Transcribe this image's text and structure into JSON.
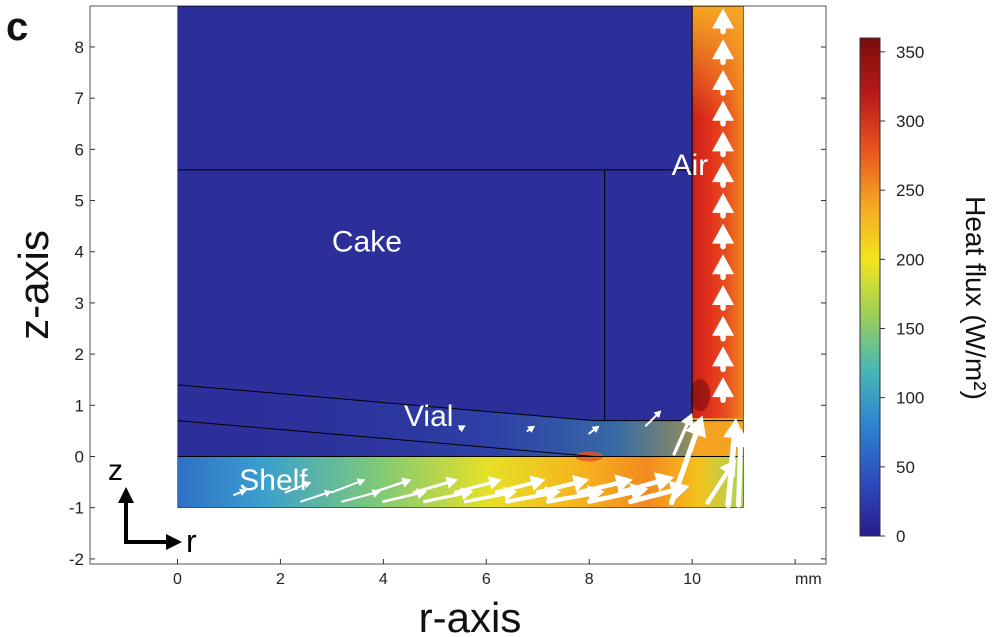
{
  "chart_data": {
    "type": "heatmap",
    "panel_label": "c",
    "xlabel": "r-axis",
    "ylabel": "z-axis",
    "x_unit": "mm",
    "xlim": [
      -1.7,
      12.6
    ],
    "ylim": [
      -2.1,
      8.8
    ],
    "x_ticks": [
      0,
      2,
      4,
      6,
      8,
      10
    ],
    "y_ticks": [
      -2,
      -1,
      0,
      1,
      2,
      3,
      4,
      5,
      6,
      7,
      8
    ],
    "grid": false,
    "colorbar": {
      "label": "Heat flux (W/m²)",
      "min": 0,
      "max": 360,
      "ticks": [
        0,
        50,
        100,
        150,
        200,
        250,
        300,
        350
      ],
      "colormap": "jet",
      "colors": [
        "#2b1b8c",
        "#2c4dbd",
        "#2f83cf",
        "#47b7b5",
        "#9ccf57",
        "#f4e41f",
        "#f5a623",
        "#e8521f",
        "#b51a1a",
        "#7a0c0c"
      ]
    },
    "regions": [
      {
        "name": "Cake",
        "label": "Cake",
        "value": 10,
        "label_at": [
          3.0,
          4.0
        ]
      },
      {
        "name": "Air",
        "label": "Air",
        "value": 8,
        "label_at": [
          9.6,
          5.5
        ]
      },
      {
        "name": "Vial",
        "label": "Vial",
        "value": 15,
        "label_at": [
          4.4,
          0.6
        ]
      },
      {
        "name": "Shelf",
        "label": "Shelf",
        "value_range": [
          60,
          330
        ],
        "label_at": [
          1.2,
          -0.65
        ]
      }
    ],
    "boundaries": {
      "domain": {
        "r": [
          0,
          11
        ],
        "z": [
          -1,
          8.8
        ]
      },
      "shelf_top_z": 0,
      "cake_top_z": 5.6,
      "cake_right_r": 8.3,
      "vial_bottom_inner": {
        "r": [
          0,
          8.1
        ],
        "z": [
          1.4,
          0.7
        ]
      },
      "vial_bottom_outer": {
        "r": [
          0,
          8.1
        ],
        "z": [
          0.7,
          0.0
        ]
      },
      "vial_wall_r": [
        10.0,
        11.0
      ],
      "vial_wall_bottom_z": 0.75
    },
    "flux_arrows": [
      {
        "r": 10.6,
        "z": 8.3,
        "dr": 0,
        "dz": 0.45,
        "mag": 330
      },
      {
        "r": 10.6,
        "z": 7.7,
        "dr": 0,
        "dz": 0.45,
        "mag": 330
      },
      {
        "r": 10.6,
        "z": 7.1,
        "dr": 0,
        "dz": 0.45,
        "mag": 330
      },
      {
        "r": 10.6,
        "z": 6.5,
        "dr": 0,
        "dz": 0.45,
        "mag": 330
      },
      {
        "r": 10.6,
        "z": 5.9,
        "dr": 0,
        "dz": 0.45,
        "mag": 330
      },
      {
        "r": 10.6,
        "z": 5.3,
        "dr": 0,
        "dz": 0.45,
        "mag": 330
      },
      {
        "r": 10.6,
        "z": 4.7,
        "dr": 0,
        "dz": 0.45,
        "mag": 330
      },
      {
        "r": 10.6,
        "z": 4.1,
        "dr": 0,
        "dz": 0.45,
        "mag": 330
      },
      {
        "r": 10.6,
        "z": 3.5,
        "dr": 0,
        "dz": 0.45,
        "mag": 330
      },
      {
        "r": 10.6,
        "z": 2.9,
        "dr": 0,
        "dz": 0.45,
        "mag": 330
      },
      {
        "r": 10.6,
        "z": 2.3,
        "dr": 0,
        "dz": 0.45,
        "mag": 330
      },
      {
        "r": 10.6,
        "z": 1.7,
        "dr": 0,
        "dz": 0.45,
        "mag": 330
      },
      {
        "r": 10.6,
        "z": 1.1,
        "dr": 0,
        "dz": 0.45,
        "mag": 330
      },
      {
        "r": 10.7,
        "z": -0.95,
        "dr": 0.15,
        "dz": 1.7,
        "mag": 340
      },
      {
        "r": 10.9,
        "z": -0.95,
        "dr": 0.05,
        "dz": 1.5,
        "mag": 300
      },
      {
        "r": 9.6,
        "z": -0.9,
        "dr": 0.6,
        "dz": 1.7,
        "mag": 320
      },
      {
        "r": 10.3,
        "z": -0.9,
        "dr": 0.55,
        "dz": 0.85,
        "mag": 260
      },
      {
        "r": 9.65,
        "z": 0.05,
        "dr": 0.35,
        "dz": 0.8,
        "mag": 200
      },
      {
        "r": 9.1,
        "z": 0.6,
        "dr": 0.3,
        "dz": 0.3,
        "mag": 80
      },
      {
        "r": 8.0,
        "z": 0.45,
        "dr": 0.2,
        "dz": 0.15,
        "mag": 40
      },
      {
        "r": 6.8,
        "z": 0.5,
        "dr": 0.15,
        "dz": 0.1,
        "mag": 30
      },
      {
        "r": 5.5,
        "z": 0.55,
        "dr": 0.1,
        "dz": 0.06,
        "mag": 20
      },
      {
        "r": 1.1,
        "z": -0.75,
        "dr": 0.25,
        "dz": 0.1,
        "mag": 60
      },
      {
        "r": 2.1,
        "z": -0.7,
        "dr": 0.5,
        "dz": 0.2,
        "mag": 90
      },
      {
        "r": 3.0,
        "z": -0.7,
        "dr": 0.65,
        "dz": 0.25,
        "mag": 120
      },
      {
        "r": 3.8,
        "z": -0.7,
        "dr": 0.75,
        "dz": 0.25,
        "mag": 150
      },
      {
        "r": 4.6,
        "z": -0.7,
        "dr": 0.85,
        "dz": 0.25,
        "mag": 180
      },
      {
        "r": 5.4,
        "z": -0.7,
        "dr": 0.9,
        "dz": 0.25,
        "mag": 200
      },
      {
        "r": 6.2,
        "z": -0.7,
        "dr": 0.95,
        "dz": 0.25,
        "mag": 230
      },
      {
        "r": 7.0,
        "z": -0.7,
        "dr": 1.0,
        "dz": 0.25,
        "mag": 250
      },
      {
        "r": 7.8,
        "z": -0.7,
        "dr": 1.05,
        "dz": 0.25,
        "mag": 270
      },
      {
        "r": 8.6,
        "z": -0.7,
        "dr": 1.05,
        "dz": 0.3,
        "mag": 290
      },
      {
        "r": 2.4,
        "z": -0.88,
        "dr": 0.6,
        "dz": 0.2,
        "mag": 100
      },
      {
        "r": 3.2,
        "z": -0.88,
        "dr": 0.75,
        "dz": 0.2,
        "mag": 130
      },
      {
        "r": 4.0,
        "z": -0.88,
        "dr": 0.85,
        "dz": 0.2,
        "mag": 160
      },
      {
        "r": 4.8,
        "z": -0.88,
        "dr": 0.95,
        "dz": 0.2,
        "mag": 190
      },
      {
        "r": 5.6,
        "z": -0.88,
        "dr": 1.0,
        "dz": 0.2,
        "mag": 210
      },
      {
        "r": 6.4,
        "z": -0.88,
        "dr": 1.05,
        "dz": 0.2,
        "mag": 240
      },
      {
        "r": 7.2,
        "z": -0.88,
        "dr": 1.1,
        "dz": 0.2,
        "mag": 260
      },
      {
        "r": 8.0,
        "z": -0.88,
        "dr": 1.15,
        "dz": 0.25,
        "mag": 280
      },
      {
        "r": 8.8,
        "z": -0.88,
        "dr": 1.15,
        "dz": 0.3,
        "mag": 300
      }
    ],
    "coordinate_glyph": {
      "vertical": "z",
      "horizontal": "r"
    }
  }
}
